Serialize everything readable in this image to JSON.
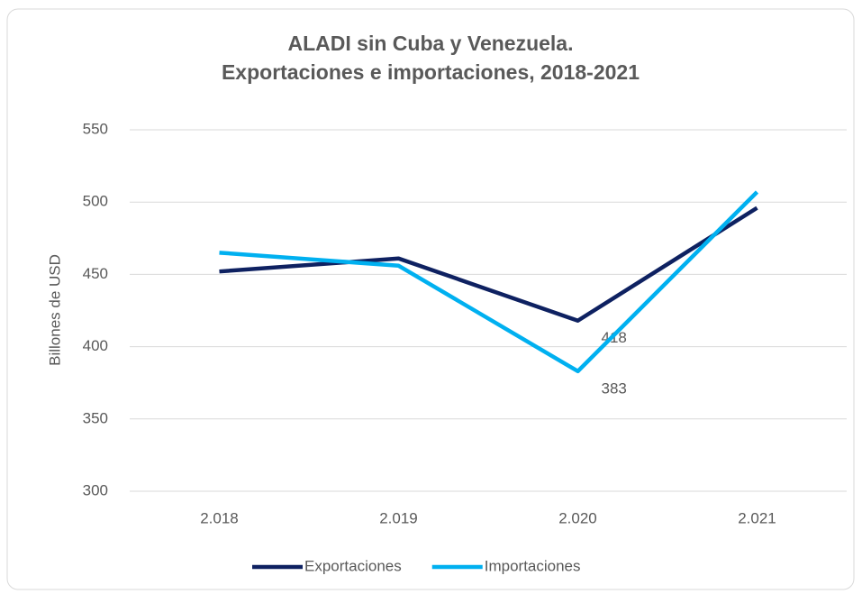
{
  "chart_data": {
    "type": "line",
    "title": [
      "ALADI sin Cuba y Venezuela.",
      "Exportaciones e importaciones, 2018-2021"
    ],
    "ylabel": "Billones de USD",
    "categories": [
      "2.018",
      "2.019",
      "2.020",
      "2.021"
    ],
    "series": [
      {
        "name": "Exportaciones",
        "color": "#0e2161",
        "values": [
          452,
          461,
          418,
          496
        ],
        "value_labels": [
          null,
          null,
          "418",
          null
        ]
      },
      {
        "name": "Importaciones",
        "color": "#00b0f0",
        "values": [
          465,
          456,
          383,
          507
        ],
        "value_labels": [
          null,
          null,
          "383",
          null
        ]
      }
    ],
    "ylim": [
      300,
      550
    ],
    "yticks": [
      300,
      350,
      400,
      450,
      500,
      550
    ],
    "grid": true,
    "legend": "bottom"
  }
}
